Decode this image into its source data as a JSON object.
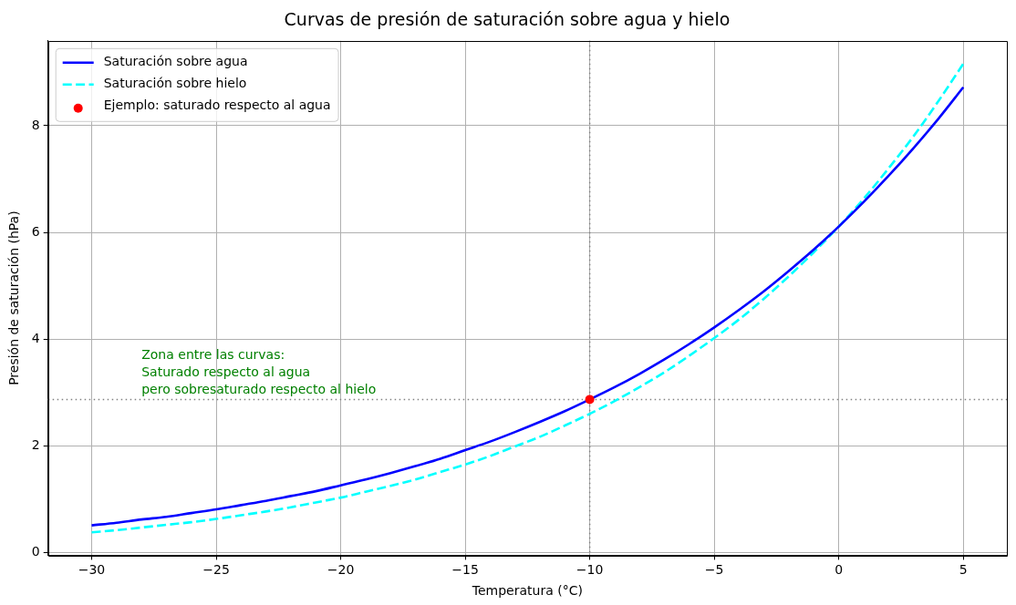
{
  "chart_data": {
    "type": "line",
    "title": "Curvas de presión de saturación sobre agua y hielo",
    "xlabel": "Temperatura (°C)",
    "ylabel": "Presión de saturación (hPa)",
    "x": [
      -30,
      -29,
      -28,
      -27,
      -26,
      -25,
      -24,
      -23,
      -22,
      -21,
      -20,
      -19,
      -18,
      -17,
      -16,
      -15,
      -14,
      -13,
      -12,
      -11,
      -10,
      -9,
      -8,
      -7,
      -6,
      -5,
      -4,
      -3,
      -2,
      -1,
      0,
      1,
      2,
      3,
      4,
      5
    ],
    "series": [
      {
        "name": "Saturación sobre agua",
        "color": "#0000ff",
        "line_style": "solid",
        "values": [
          0.51,
          0.56,
          0.62,
          0.67,
          0.74,
          0.81,
          0.89,
          0.97,
          1.06,
          1.15,
          1.26,
          1.37,
          1.49,
          1.62,
          1.76,
          1.92,
          2.08,
          2.26,
          2.45,
          2.65,
          2.87,
          3.1,
          3.35,
          3.62,
          3.91,
          4.22,
          4.55,
          4.9,
          5.28,
          5.68,
          6.11,
          6.57,
          7.06,
          7.58,
          8.13,
          8.72
        ]
      },
      {
        "name": "Saturación sobre hielo",
        "color": "#00ffff",
        "line_style": "dashed",
        "values": [
          0.38,
          0.42,
          0.47,
          0.52,
          0.57,
          0.63,
          0.7,
          0.77,
          0.85,
          0.94,
          1.03,
          1.14,
          1.25,
          1.37,
          1.51,
          1.65,
          1.81,
          1.99,
          2.17,
          2.38,
          2.6,
          2.84,
          3.1,
          3.38,
          3.69,
          4.02,
          4.37,
          4.76,
          5.18,
          5.63,
          6.11,
          6.63,
          7.2,
          7.8,
          8.46,
          9.16
        ]
      },
      {
        "name": "Ejemplo: saturado respecto al agua",
        "type": "scatter",
        "marker": "circle",
        "color": "#ff0000",
        "x": [
          -10
        ],
        "values": [
          2.87
        ]
      }
    ],
    "ref_lines": [
      {
        "axis": "x",
        "value": -10,
        "color": "#808080",
        "line_style": "dotted"
      },
      {
        "axis": "y",
        "value": 2.87,
        "color": "#808080",
        "line_style": "dotted"
      }
    ],
    "annotations": [
      "Zona entre las curvas:\nSaturado respecto al agua\npero sobresaturado respecto al hielo"
    ],
    "xlim": [
      -31.75,
      6.75
    ],
    "xticks": [
      -30,
      -25,
      -20,
      -15,
      -10,
      -5,
      0,
      5
    ],
    "ylim": [
      -0.05,
      9.59
    ],
    "yticks": [
      0,
      2,
      4,
      6,
      8
    ],
    "grid": true,
    "legend": "top left"
  }
}
